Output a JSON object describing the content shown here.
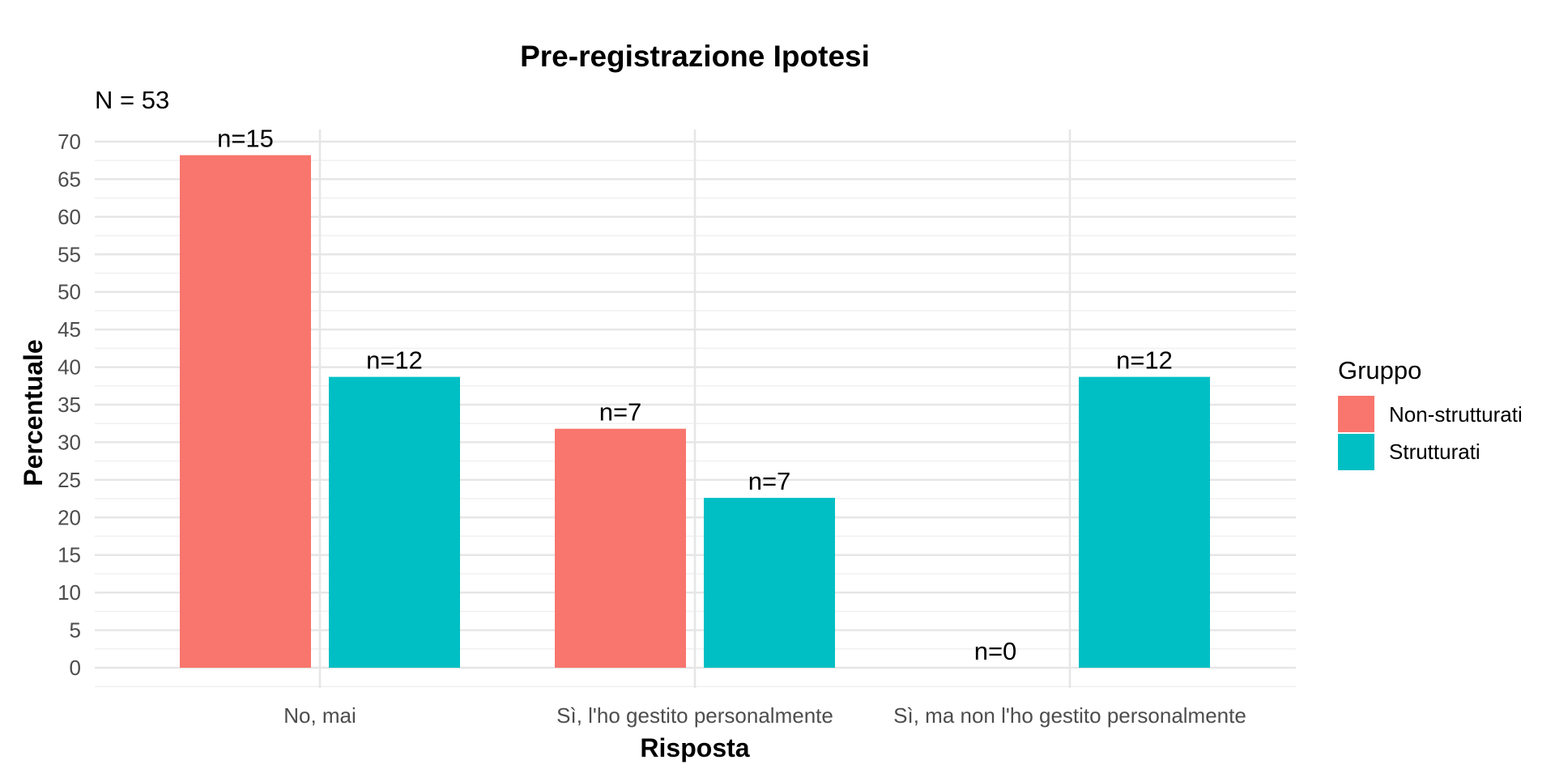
{
  "chart_data": {
    "type": "bar",
    "title": "Pre-registrazione Ipotesi",
    "subtitle": "N = 53",
    "xlabel": "Risposta",
    "ylabel": "Percentuale",
    "ylim": [
      0,
      70
    ],
    "y_ticks": [
      "0",
      "5",
      "10",
      "15",
      "20",
      "25",
      "30",
      "35",
      "40",
      "45",
      "50",
      "55",
      "60",
      "65",
      "70"
    ],
    "categories": [
      "No, mai",
      "Sì, l'ho gestito personalmente",
      "Sì, ma non l'ho gestito personalmente"
    ],
    "series": [
      {
        "name": "Non-strutturati",
        "color": "#F8766D",
        "values": [
          68.2,
          31.8,
          0
        ],
        "labels": [
          "n=15",
          "n=7",
          "n=0"
        ]
      },
      {
        "name": "Strutturati",
        "color": "#00BFC4",
        "values": [
          38.7,
          22.6,
          38.7
        ],
        "labels": [
          "n=12",
          "n=7",
          "n=12"
        ]
      }
    ],
    "legend": {
      "title": "Gruppo",
      "position": "right"
    },
    "grid": true
  }
}
